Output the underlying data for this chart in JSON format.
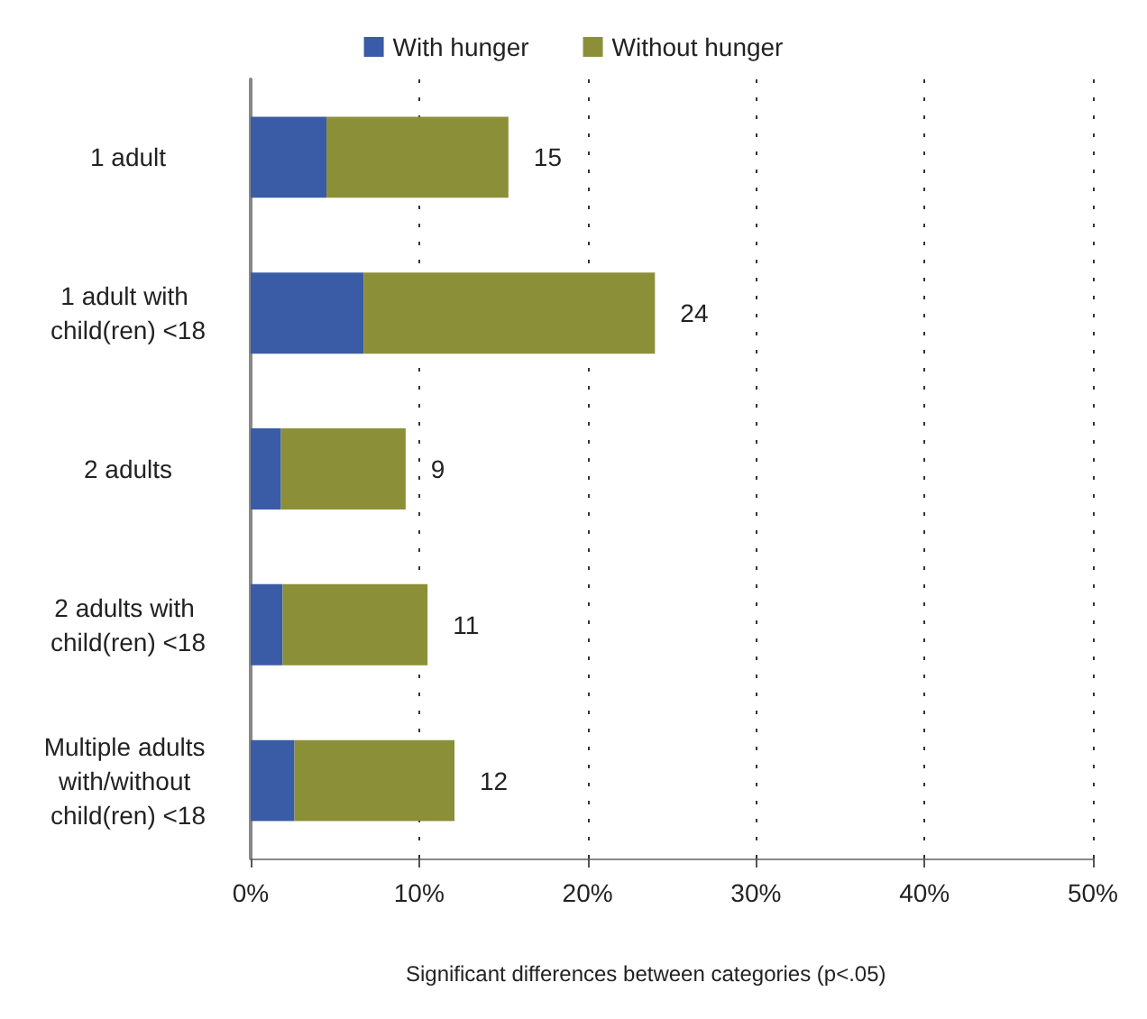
{
  "chart_data": {
    "type": "bar",
    "orientation": "horizontal",
    "stacked": true,
    "categories": [
      "1 adult",
      "1 adult with child(ren) <18",
      "2 adults",
      "2 adults with child(ren) <18",
      "Multiple adults with/without child(ren) <18"
    ],
    "series": [
      {
        "name": "With hunger",
        "color": "#3a5ba5",
        "values": [
          4.5,
          6.7,
          1.8,
          1.9,
          2.6
        ]
      },
      {
        "name": "Without hunger",
        "color": "#8b8f38",
        "values": [
          10.8,
          17.3,
          7.4,
          8.6,
          9.5
        ]
      }
    ],
    "totals": [
      "15",
      "24",
      "9",
      "11",
      "12"
    ],
    "xlim": [
      0,
      50
    ],
    "xticks": [
      {
        "value": 0,
        "label": "0%"
      },
      {
        "value": 10,
        "label": "10%"
      },
      {
        "value": 20,
        "label": "20%"
      },
      {
        "value": 30,
        "label": "30%"
      },
      {
        "value": 40,
        "label": "40%"
      },
      {
        "value": 50,
        "label": "50%"
      }
    ],
    "grid": "x",
    "legend": "top",
    "annotations": [
      "Significant differences between categories (p<.05)"
    ]
  }
}
